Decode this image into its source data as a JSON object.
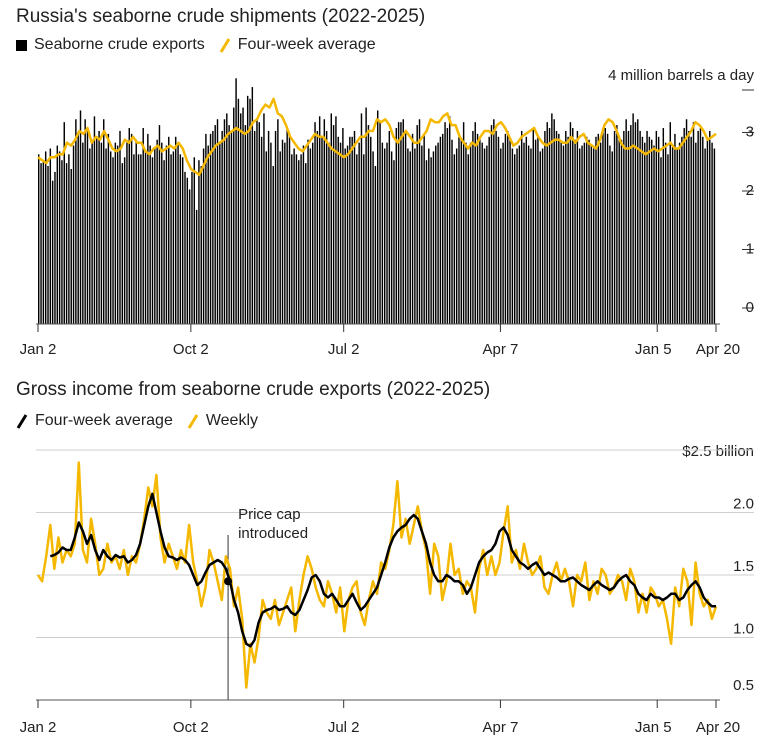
{
  "colors": {
    "bar": "#000000",
    "average": "#f5b800",
    "income_avg": "#000000",
    "income_weekly": "#f5b800"
  },
  "chart_data": [
    {
      "type": "bar",
      "title": "Russia's seaborne crude shipments (2022-2025)",
      "legend": [
        "Seaborne crude exports",
        "Four-week average"
      ],
      "unit_label": "4 million barrels a day",
      "ylim": [
        0,
        4
      ],
      "y_ticks": [
        "0",
        "1",
        "2",
        "3"
      ],
      "x_ticks": [
        "Jan 2",
        "Oct 2",
        "Jul 2",
        "Apr 7",
        "Jan 5",
        "Apr 20"
      ],
      "x_tick_weeks": [
        0,
        39,
        78,
        118,
        158,
        173
      ],
      "series": [
        {
          "name": "Seaborne crude exports",
          "values": [
            2.9,
            2.75,
            2.8,
            2.95,
            2.7,
            3.0,
            2.45,
            2.6,
            3.05,
            2.95,
            2.8,
            3.45,
            2.75,
            2.9,
            2.65,
            3.05,
            3.5,
            3.25,
            3.65,
            3.1,
            3.5,
            3.3,
            3.0,
            3.15,
            3.55,
            3.2,
            3.3,
            3.1,
            3.5,
            3.0,
            3.25,
            2.95,
            2.85,
            3.1,
            3.05,
            3.3,
            2.75,
            2.85,
            3.1,
            3.35,
            3.25,
            2.9,
            3.15,
            2.9,
            2.9,
            3.35,
            2.95,
            3.25,
            3.05,
            2.85,
            3.0,
            3.15,
            3.4,
            3.1,
            2.8,
            3.05,
            3.2,
            2.9,
            2.95,
            3.2,
            3.1,
            2.9,
            2.85,
            2.6,
            2.5,
            2.3,
            2.6,
            2.85,
            1.95,
            2.8,
            2.7,
            3.0,
            3.25,
            3.05,
            3.25,
            3.3,
            3.4,
            3.5,
            3.1,
            3.3,
            3.5,
            3.6,
            3.4,
            3.3,
            3.7,
            4.2,
            3.85,
            3.6,
            3.7,
            3.4,
            3.9,
            3.85,
            4.05,
            3.3,
            3.5,
            3.45,
            3.2,
            3.6,
            2.95,
            3.3,
            3.1,
            2.7,
            3.3,
            3.5,
            2.95,
            3.15,
            3.1,
            3.35,
            3.25,
            2.9,
            3.0,
            2.9,
            2.8,
            2.9,
            3.05,
            2.75,
            3.15,
            3.0,
            3.1,
            3.45,
            3.3,
            3.55,
            3.2,
            3.5,
            3.3,
            3.1,
            3.6,
            3.4,
            3.55,
            3.2,
            3.1,
            3.35,
            3.0,
            3.05,
            3.2,
            3.2,
            3.3,
            2.9,
            3.1,
            3.6,
            2.9,
            3.7,
            3.4,
            3.2,
            2.95,
            2.7,
            3.65,
            3.45,
            3.1,
            3.0,
            3.1,
            3.3,
            2.95,
            2.8,
            3.35,
            3.45,
            3.45,
            3.5,
            3.3,
            3.0,
            2.95,
            3.25,
            3.0,
            3.4,
            3.5,
            3.05,
            3.25,
            2.8,
            3.0,
            2.85,
            2.95,
            3.05,
            3.1,
            3.2,
            3.25,
            3.45,
            3.35,
            3.55,
            3.15,
            2.9,
            3.0,
            3.2,
            3.15,
            3.45,
            3.1,
            2.9,
            3.1,
            3.3,
            3.45,
            3.25,
            3.15,
            3.1,
            3.0,
            3.05,
            3.2,
            3.4,
            3.5,
            3.3,
            3.2,
            3.0,
            3.1,
            3.25,
            3.3,
            3.15,
            3.0,
            2.9,
            3.0,
            3.05,
            3.3,
            3.1,
            3.2,
            3.05,
            3.0,
            3.35,
            3.15,
            3.2,
            2.95,
            3.0,
            3.3,
            3.45,
            3.35,
            3.6,
            3.5,
            3.3,
            3.25,
            3.1,
            3.05,
            3.3,
            3.2,
            3.45,
            3.35,
            3.15,
            3.3,
            3.0,
            3.05,
            3.1,
            3.2,
            3.15,
            3.05,
            3.0,
            3.2,
            3.25,
            3.1,
            3.3,
            3.35,
            3.25,
            3.05,
            2.95,
            3.3,
            3.4,
            3.2,
            3.15,
            3.3,
            3.5,
            3.3,
            3.4,
            3.6,
            3.45,
            3.5,
            3.3,
            3.2,
            3.1,
            3.3,
            3.2,
            3.15,
            3.05,
            3.3,
            3.2,
            2.85,
            3.35,
            3.1,
            2.9,
            3.45,
            3.05,
            3.25,
            3.0,
            3.1,
            3.2,
            3.35,
            3.5,
            3.3,
            3.2,
            3.45,
            3.1,
            3.3,
            3.35,
            3.2,
            3.0,
            3.15,
            3.3,
            3.1,
            3.0
          ]
        },
        {
          "name": "Four-week average",
          "values": [
            2.85,
            2.8,
            2.75,
            2.85,
            2.85,
            2.9,
            2.9,
            3.1,
            3.05,
            3.15,
            3.3,
            3.25,
            3.35,
            3.1,
            3.2,
            3.15,
            3.3,
            3.15,
            3.0,
            2.95,
            3.0,
            3.15,
            3.1,
            3.2,
            3.1,
            3.1,
            2.95,
            2.9,
            3.0,
            3.05,
            2.95,
            3.0,
            3.05,
            3.0,
            3.1,
            3.0,
            2.8,
            2.65,
            2.6,
            2.55,
            2.7,
            2.85,
            2.95,
            3.05,
            3.1,
            3.15,
            3.25,
            3.3,
            3.35,
            3.3,
            3.25,
            3.3,
            3.45,
            3.5,
            3.65,
            3.75,
            3.7,
            3.85,
            3.6,
            3.55,
            3.4,
            3.2,
            3.1,
            3.0,
            2.95,
            3.05,
            3.15,
            3.25,
            3.2,
            3.2,
            3.1,
            3.0,
            2.95,
            2.9,
            2.85,
            2.9,
            3.0,
            3.1,
            3.2,
            3.2,
            3.3,
            3.3,
            3.5,
            3.45,
            3.5,
            3.4,
            3.2,
            3.1,
            3.2,
            3.3,
            3.2,
            3.1,
            3.1,
            3.2,
            3.3,
            3.5,
            3.45,
            3.45,
            3.55,
            3.6,
            3.4,
            3.4,
            3.2,
            3.1,
            3.0,
            3.1,
            3.05,
            3.2,
            3.3,
            3.3,
            3.25,
            3.4,
            3.45,
            3.35,
            3.2,
            3.05,
            3.1,
            3.2,
            3.25,
            3.3,
            3.35,
            3.2,
            3.1,
            3.05,
            3.1,
            3.15,
            3.15,
            3.1,
            3.1,
            3.2,
            3.1,
            3.2,
            3.25,
            3.1,
            3.05,
            3.0,
            3.15,
            3.4,
            3.5,
            3.45,
            3.3,
            3.1,
            3.0,
            3.0,
            3.05,
            3.0,
            2.95,
            2.9,
            2.95,
            3.0,
            2.95,
            3.0,
            3.05,
            3.1,
            3.0,
            3.0,
            3.1,
            3.2,
            3.3,
            3.45,
            3.4,
            3.3,
            3.15,
            3.2,
            3.25
          ]
        }
      ]
    },
    {
      "type": "line",
      "title": "Gross income from seaborne crude exports (2022-2025)",
      "legend": [
        "Four-week average",
        "Weekly"
      ],
      "unit_label": "$2.5 billion",
      "ylim": [
        0.5,
        2.5
      ],
      "y_ticks": [
        "2.0",
        "1.5",
        "1.0",
        "0.5"
      ],
      "x_ticks": [
        "Jan 2",
        "Oct 2",
        "Jul 2",
        "Apr 7",
        "Jan 5",
        "Apr 20"
      ],
      "x_tick_weeks": [
        0,
        39,
        78,
        118,
        158,
        173
      ],
      "annotation": {
        "text_1": "Price cap",
        "text_2": "introduced",
        "week": 48.5
      },
      "series": [
        {
          "name": "Weekly",
          "values": [
            1.5,
            1.45,
            1.65,
            1.9,
            1.55,
            1.8,
            1.6,
            1.7,
            1.65,
            1.75,
            2.4,
            1.7,
            1.6,
            1.95,
            1.75,
            1.5,
            1.55,
            1.75,
            1.6,
            1.65,
            1.55,
            1.7,
            1.5,
            1.65,
            1.6,
            1.75,
            1.95,
            2.2,
            2.05,
            2.3,
            1.8,
            1.6,
            1.75,
            1.65,
            1.55,
            1.7,
            1.6,
            1.9,
            1.6,
            1.45,
            1.25,
            1.4,
            1.7,
            1.6,
            1.45,
            1.3,
            1.65,
            1.55,
            1.25,
            1.4,
            1.15,
            0.6,
            0.95,
            0.8,
            1.0,
            1.3,
            1.2,
            1.15,
            1.3,
            1.1,
            1.2,
            1.3,
            1.4,
            1.05,
            1.3,
            1.5,
            1.65,
            1.55,
            1.4,
            1.3,
            1.25,
            1.45,
            1.35,
            1.2,
            1.4,
            1.05,
            1.3,
            1.4,
            1.45,
            1.2,
            1.1,
            1.3,
            1.45,
            1.35,
            1.6,
            1.55,
            1.7,
            1.9,
            2.25,
            1.8,
            1.95,
            1.75,
            1.9,
            2.05,
            1.85,
            1.7,
            1.35,
            1.75,
            1.65,
            1.3,
            1.45,
            1.75,
            1.5,
            1.55,
            1.35,
            1.45,
            1.4,
            1.2,
            1.55,
            1.7,
            1.5,
            1.65,
            1.5,
            1.6,
            1.85,
            2.05,
            1.6,
            1.7,
            1.55,
            1.75,
            1.6,
            1.5,
            1.55,
            1.65,
            1.4,
            1.35,
            1.5,
            1.6,
            1.45,
            1.55,
            1.45,
            1.25,
            1.5,
            1.45,
            1.6,
            1.3,
            1.45,
            1.35,
            1.55,
            1.5,
            1.35,
            1.4,
            1.5,
            1.45,
            1.3,
            1.55,
            1.45,
            1.2,
            1.35,
            1.2,
            1.4,
            1.35,
            1.25,
            1.3,
            1.15,
            0.95,
            1.4,
            1.25,
            1.55,
            1.45,
            1.1,
            1.6,
            1.35,
            1.25,
            1.3,
            1.15,
            1.25
          ]
        },
        {
          "name": "Four-week average",
          "values": [
            null,
            null,
            null,
            1.65,
            1.66,
            1.68,
            1.72,
            1.7,
            1.7,
            1.8,
            1.92,
            1.85,
            1.75,
            1.82,
            1.7,
            1.62,
            1.7,
            1.65,
            1.62,
            1.66,
            1.64,
            1.65,
            1.6,
            1.62,
            1.66,
            1.75,
            1.9,
            2.05,
            2.15,
            2.0,
            1.85,
            1.72,
            1.65,
            1.64,
            1.62,
            1.64,
            1.62,
            1.58,
            1.5,
            1.42,
            1.45,
            1.52,
            1.58,
            1.6,
            1.62,
            1.6,
            1.55,
            1.45,
            1.3,
            1.2,
            1.05,
            0.95,
            0.93,
            0.98,
            1.12,
            1.2,
            1.22,
            1.23,
            1.25,
            1.22,
            1.23,
            1.25,
            1.2,
            1.18,
            1.22,
            1.3,
            1.38,
            1.48,
            1.5,
            1.45,
            1.35,
            1.32,
            1.35,
            1.3,
            1.25,
            1.25,
            1.3,
            1.35,
            1.28,
            1.22,
            1.25,
            1.3,
            1.35,
            1.4,
            1.5,
            1.6,
            1.72,
            1.8,
            1.85,
            1.88,
            1.9,
            1.95,
            1.98,
            1.95,
            1.85,
            1.75,
            1.6,
            1.5,
            1.45,
            1.45,
            1.5,
            1.48,
            1.45,
            1.45,
            1.42,
            1.35,
            1.4,
            1.5,
            1.6,
            1.65,
            1.68,
            1.7,
            1.75,
            1.85,
            1.88,
            1.82,
            1.7,
            1.65,
            1.6,
            1.58,
            1.55,
            1.58,
            1.6,
            1.55,
            1.5,
            1.52,
            1.5,
            1.48,
            1.45,
            1.45,
            1.47,
            1.48,
            1.45,
            1.42,
            1.4,
            1.38,
            1.42,
            1.45,
            1.42,
            1.4,
            1.38,
            1.4,
            1.45,
            1.48,
            1.5,
            1.45,
            1.42,
            1.35,
            1.32,
            1.3,
            1.35,
            1.32,
            1.32,
            1.3,
            1.32,
            1.35,
            1.35,
            1.3,
            1.32,
            1.38,
            1.42,
            1.45,
            1.4,
            1.32,
            1.28,
            1.25,
            1.25
          ]
        }
      ]
    }
  ]
}
